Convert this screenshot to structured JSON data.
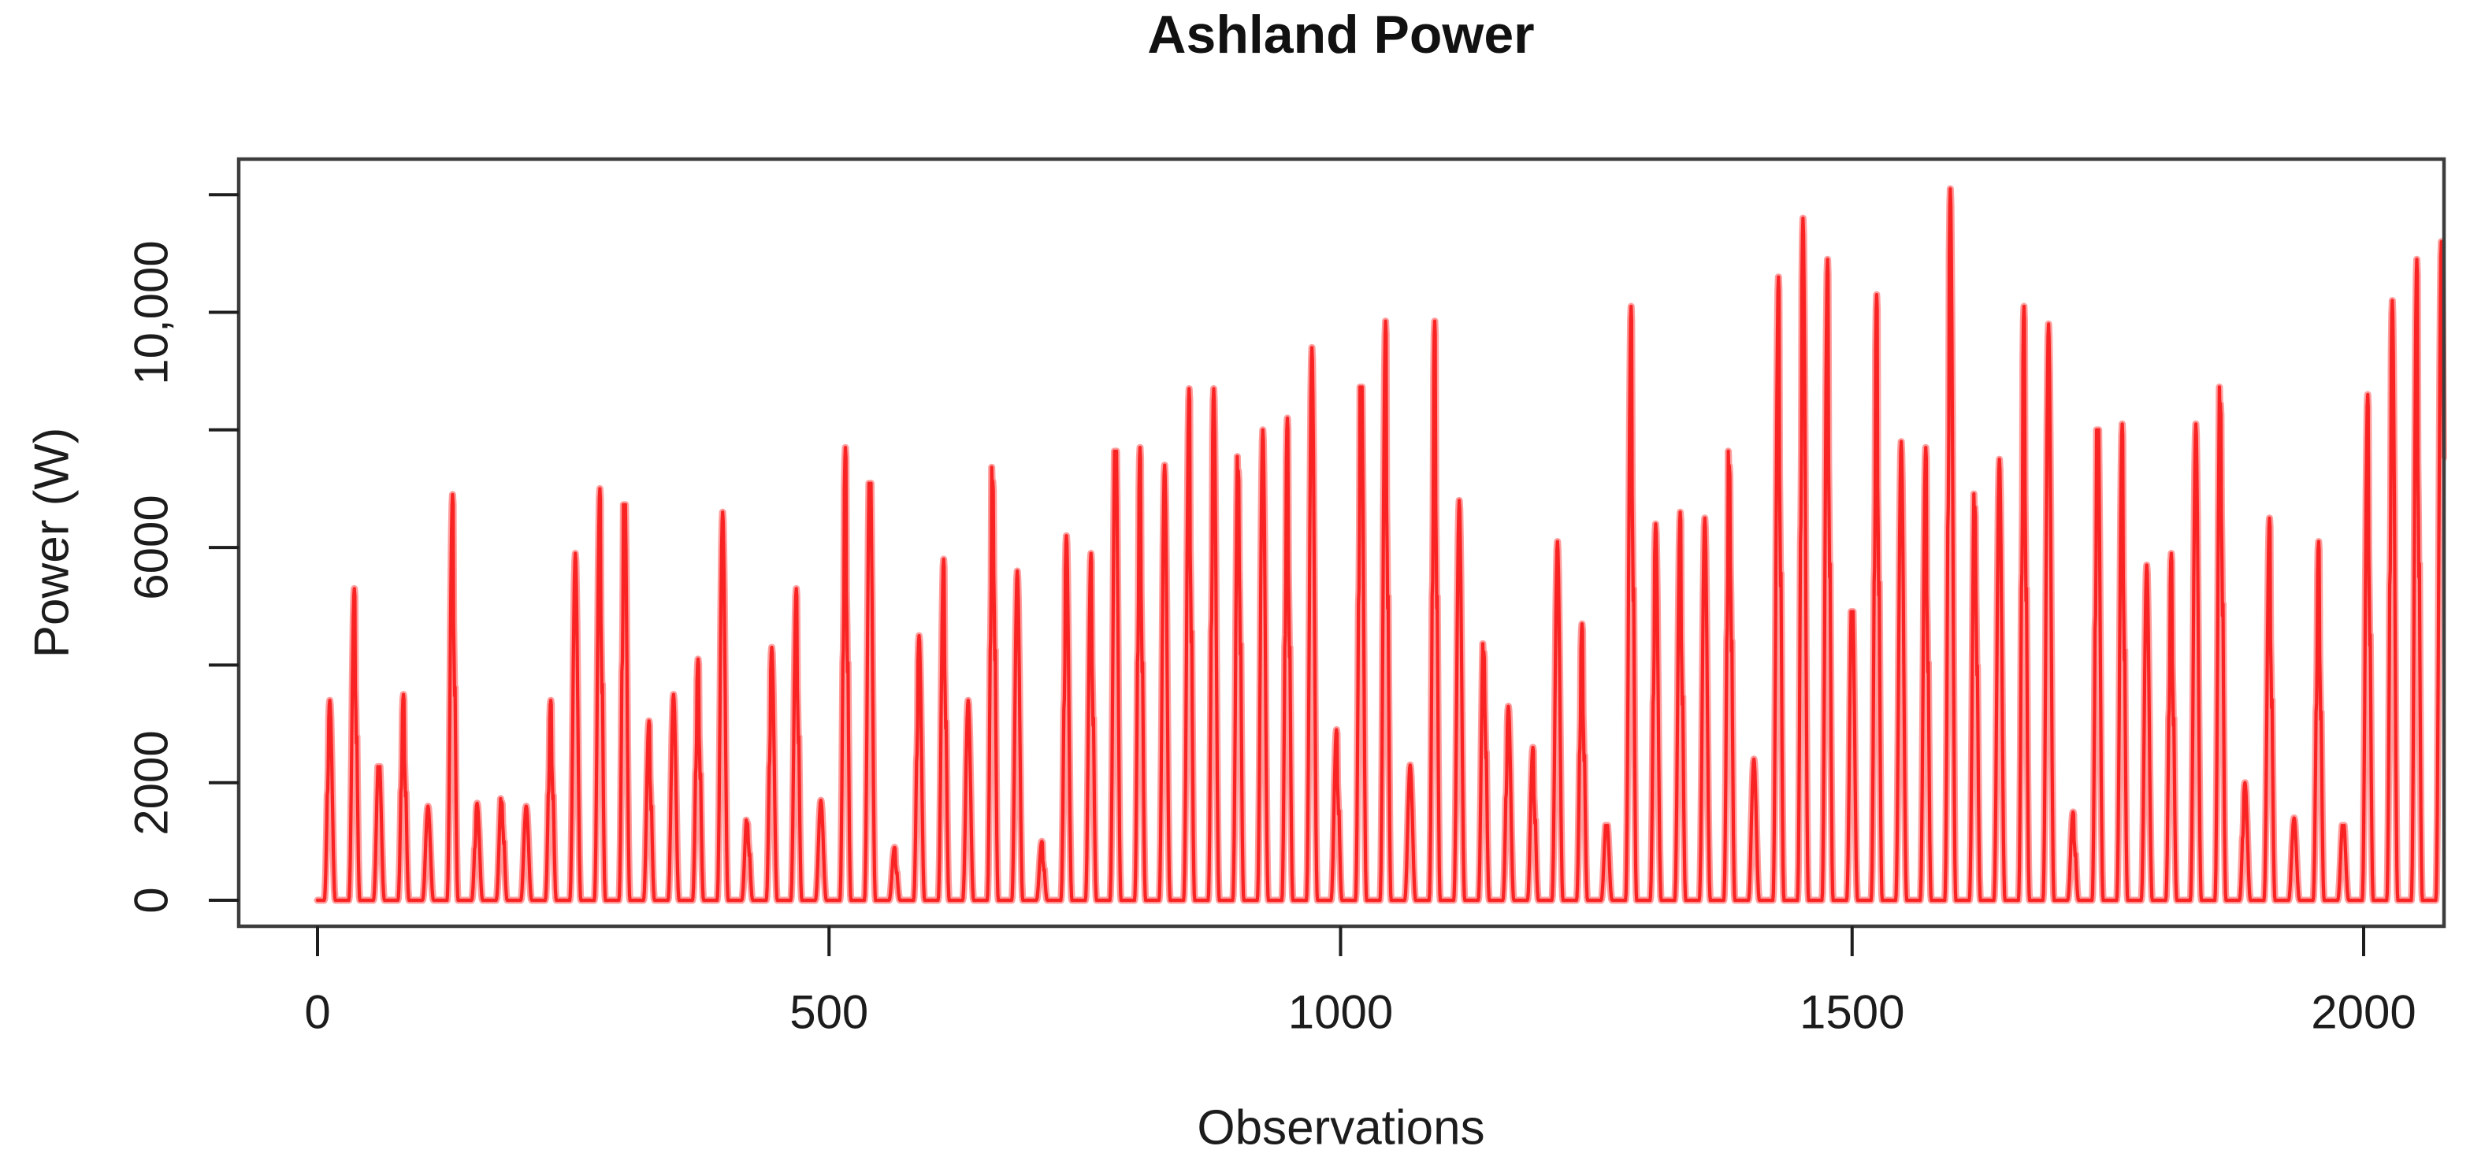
{
  "figure": {
    "title": "Ashland Power",
    "x_axis_label": "Observations",
    "y_axis_label": "Power (W)"
  },
  "colors": {
    "line": "#f92323",
    "line_halo": "#ff9d9d",
    "box": "#3d3d3d",
    "tick": "#1e1e1e",
    "text": "#1c1c1c",
    "background": "#ffffff"
  },
  "chart_data": {
    "type": "line",
    "title": "Ashland Power",
    "xlabel": "Observations",
    "ylabel": "Power (W)",
    "units": "W",
    "grid": false,
    "legend": "none",
    "x_range": [
      0,
      2078
    ],
    "y_range": [
      0,
      12600
    ],
    "x_ticks": [
      {
        "value": 0,
        "label": "0"
      },
      {
        "value": 500,
        "label": "500"
      },
      {
        "value": 1000,
        "label": "1000"
      },
      {
        "value": 1500,
        "label": "1500"
      },
      {
        "value": 2000,
        "label": "2000"
      }
    ],
    "y_ticks": [
      {
        "value": 0,
        "label": "0"
      },
      {
        "value": 2000,
        "label": "2000"
      },
      {
        "value": 4000,
        "label": ""
      },
      {
        "value": 6000,
        "label": "6000"
      },
      {
        "value": 8000,
        "label": ""
      },
      {
        "value": 10000,
        "label": "10,000"
      },
      {
        "value": 12000,
        "label": ""
      }
    ],
    "series_name": "Ashland Power",
    "pattern": "daily periodic spikes rising from zero baseline",
    "cycle_period_obs": 24,
    "daylight_start_obs": 6.5,
    "daylight_length_obs": 11,
    "peak_exponent": 2.3,
    "cycle_peaks_w": [
      3400,
      5300,
      2500,
      3500,
      1600,
      6900,
      1650,
      1900,
      1600,
      3400,
      5900,
      7000,
      7400,
      3050,
      3500,
      4100,
      6600,
      1500,
      4300,
      5300,
      1700,
      7700,
      7800,
      900,
      4500,
      5800,
      3400,
      8100,
      5600,
      1000,
      6200,
      5900,
      8400,
      7700,
      7400,
      8700,
      8700,
      8300,
      8000,
      8200,
      9400,
      2900,
      9600,
      9850,
      2300,
      9850,
      6800,
      4800,
      3300,
      2600,
      6100,
      4700,
      1400,
      10100,
      6400,
      6600,
      6500,
      8400,
      2400,
      10600,
      11600,
      10900,
      5400,
      10300,
      7800,
      7700,
      12100,
      7600,
      7500,
      10100,
      9800,
      1500,
      8800,
      8100,
      5700,
      5900,
      8100,
      9600,
      2000,
      6500,
      1400,
      6100,
      1400,
      8600,
      10200,
      10900,
      11200
    ]
  }
}
